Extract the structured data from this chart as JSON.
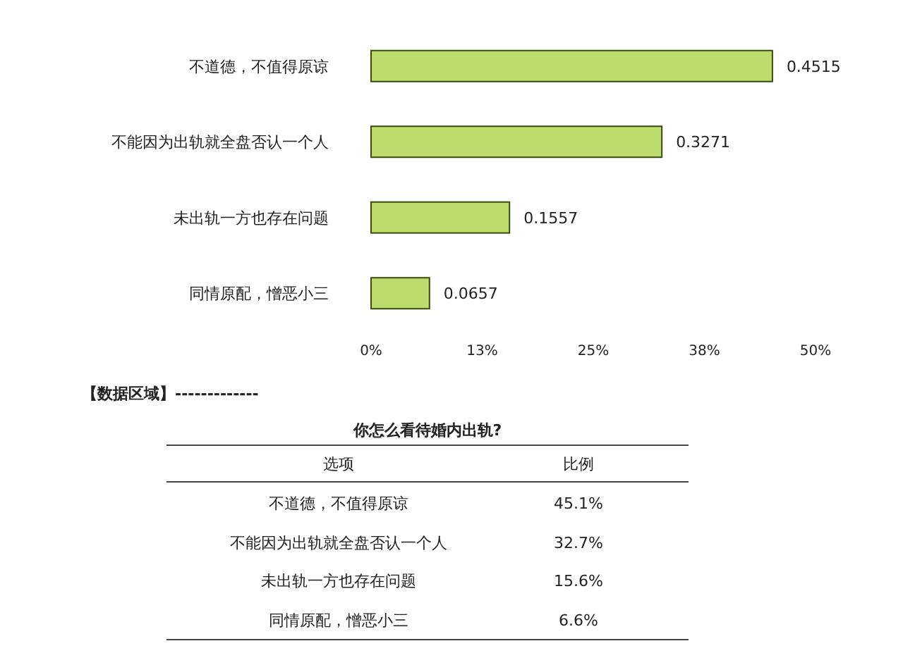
{
  "chart_data": {
    "type": "bar",
    "orientation": "horizontal",
    "categories": [
      "不道德，不值得原谅",
      "不能因为出轨就全盘否认一个人",
      "未出轨一方也存在问题",
      "同情原配，憎恶小三"
    ],
    "values": [
      0.4515,
      0.3271,
      0.1557,
      0.0657
    ],
    "color": "#bcdc6e",
    "xlim": [
      0,
      0.5
    ],
    "xticks": [
      {
        "value": 0,
        "label": "0%"
      },
      {
        "value": 0.125,
        "label": "13%"
      },
      {
        "value": 0.25,
        "label": "25%"
      },
      {
        "value": 0.375,
        "label": "38%"
      },
      {
        "value": 0.5,
        "label": "50%"
      }
    ],
    "data_labels": true,
    "annotations": [
      "【数据区域】-------------",
      "你怎么看待婚内出轨?",
      "选项",
      "比例",
      "不道德，不值得原谅",
      "45.1%",
      "不能因为出轨就全盘否认一个人",
      "32.7%",
      "未出轨一方也存在问题",
      "15.6%",
      "同情原配，憎恶小三",
      "6.6%"
    ]
  }
}
